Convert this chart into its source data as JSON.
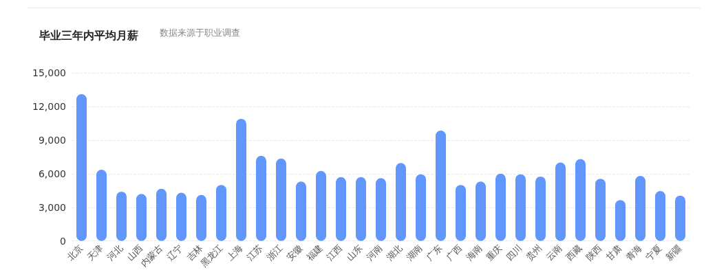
{
  "chart_data": {
    "type": "bar",
    "title": "毕业三年内平均月薪",
    "subtitle": "数据来源于职业调查",
    "categories": [
      "北京",
      "天津",
      "河北",
      "山西",
      "内蒙古",
      "辽宁",
      "吉林",
      "黑龙江",
      "上海",
      "江苏",
      "浙江",
      "安徽",
      "福建",
      "江西",
      "山东",
      "河南",
      "湖北",
      "湖南",
      "广东",
      "广西",
      "海南",
      "重庆",
      "四川",
      "贵州",
      "云南",
      "西藏",
      "陕西",
      "甘肃",
      "青海",
      "宁夏",
      "新疆"
    ],
    "values": [
      13100,
      6350,
      4400,
      4200,
      4650,
      4300,
      4100,
      5000,
      10900,
      7600,
      7350,
      5300,
      6250,
      5700,
      5700,
      5600,
      6950,
      5950,
      9850,
      5000,
      5300,
      6000,
      5950,
      5750,
      7000,
      7300,
      5550,
      3650,
      5800,
      4450,
      4050
    ],
    "color": "#6197fc",
    "ylim": [
      0,
      15000
    ],
    "yticks": [
      0,
      {
        "value": 3000,
        "label": "3,000"
      },
      {
        "value": 6000,
        "label": "6,000"
      },
      {
        "value": 9000,
        "label": "9,000"
      },
      {
        "value": 12000,
        "label": "12,000"
      },
      {
        "value": 15000,
        "label": "15,000"
      }
    ],
    "grid": "y"
  }
}
